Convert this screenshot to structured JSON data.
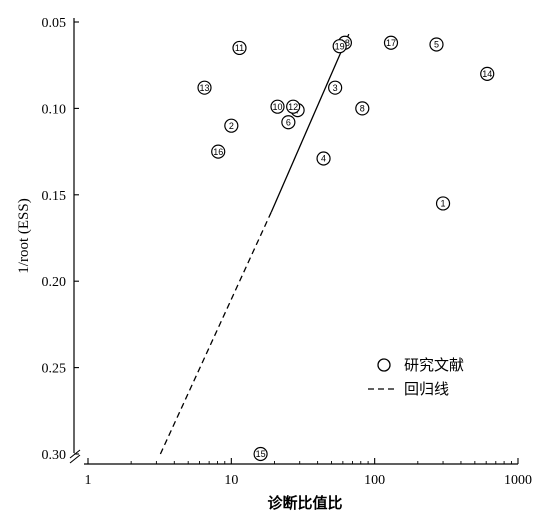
{
  "chart_data": {
    "type": "scatter",
    "title": "",
    "xlabel": "诊断比值比",
    "ylabel": "1/root (ESS)",
    "x_scale": "log",
    "xlim": [
      1,
      1000
    ],
    "ylim": [
      0.3,
      0.05
    ],
    "y_inverted": true,
    "x_ticks": [
      "1",
      "10",
      "100",
      "1000"
    ],
    "y_ticks": [
      "0.05",
      "0.10",
      "0.15",
      "0.20",
      "0.25",
      "0.30"
    ],
    "grid": false,
    "axis_break": true,
    "legend_position": "lower-right",
    "points": [
      {
        "label": "1",
        "x": 300,
        "y": 0.155
      },
      {
        "label": "2",
        "x": 10,
        "y": 0.11
      },
      {
        "label": "3",
        "x": 53,
        "y": 0.088
      },
      {
        "label": "4",
        "x": 44,
        "y": 0.129
      },
      {
        "label": "5",
        "x": 270,
        "y": 0.063
      },
      {
        "label": "6",
        "x": 25,
        "y": 0.108
      },
      {
        "label": "7",
        "x": 29,
        "y": 0.101
      },
      {
        "label": "8",
        "x": 82,
        "y": 0.1
      },
      {
        "label": "10",
        "x": 21,
        "y": 0.099
      },
      {
        "label": "11",
        "x": 11.4,
        "y": 0.065
      },
      {
        "label": "12",
        "x": 27,
        "y": 0.099
      },
      {
        "label": "13",
        "x": 6.5,
        "y": 0.088
      },
      {
        "label": "14",
        "x": 610,
        "y": 0.08
      },
      {
        "label": "15",
        "x": 16,
        "y": 0.3
      },
      {
        "label": "16",
        "x": 8.1,
        "y": 0.125
      },
      {
        "label": "17",
        "x": 130,
        "y": 0.062
      },
      {
        "label": "18",
        "x": 62,
        "y": 0.062
      },
      {
        "label": "19",
        "x": 57,
        "y": 0.064
      }
    ],
    "regression_line": {
      "name": "回归线",
      "solid": [
        [
          19,
          0.16
        ],
        [
          66,
          0.057
        ]
      ],
      "dashed": [
        [
          3.2,
          0.3
        ],
        [
          19,
          0.16
        ]
      ]
    },
    "legend": [
      {
        "symbol": "circle",
        "text": "研究文献"
      },
      {
        "symbol": "dashed-line",
        "text": "回归线"
      }
    ]
  }
}
